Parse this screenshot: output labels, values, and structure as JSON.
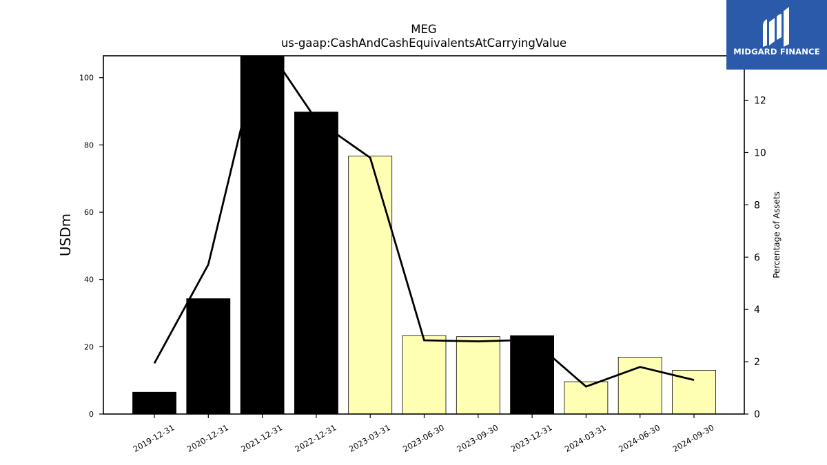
{
  "chart_data": {
    "type": "bar",
    "title": "MEG",
    "subtitle": "us-gaap:CashAndCashEquivalentsAtCarryingValue",
    "ylabel": "USDm",
    "y2label": "Percentage of Assets",
    "categories": [
      "2019-12-31",
      "2020-12-31",
      "2021-12-31",
      "2022-12-31",
      "2023-03-31",
      "2023-06-30",
      "2023-09-30",
      "2023-12-31",
      "2024-03-31",
      "2024-06-30",
      "2024-09-30"
    ],
    "series": [
      {
        "axis": "left",
        "kind": "bar",
        "values": [
          6.5,
          34.3,
          107.0,
          89.8,
          76.7,
          23.3,
          23.0,
          23.3,
          9.6,
          16.9,
          13.0
        ],
        "fill": [
          "#000000",
          "#000000",
          "#000000",
          "#000000",
          "#ffffb3",
          "#ffffb3",
          "#ffffb3",
          "#000000",
          "#ffffb3",
          "#ffffb3",
          "#ffffb3"
        ]
      },
      {
        "axis": "right",
        "kind": "line",
        "values": [
          1.94,
          5.72,
          14.3,
          11.25,
          9.8,
          2.82,
          2.78,
          2.84,
          1.05,
          1.8,
          1.3
        ],
        "color": "#000000"
      }
    ],
    "ylim": [
      0,
      106.5
    ],
    "y2lim": [
      0,
      13.7
    ],
    "yticks": [
      0,
      20,
      40,
      60,
      80,
      100
    ],
    "y2ticks": [
      0,
      2,
      4,
      6,
      8,
      10,
      12
    ],
    "grid": false
  },
  "logo": {
    "text": "MIDGARD FINANCE",
    "color": "#2b5aab"
  }
}
